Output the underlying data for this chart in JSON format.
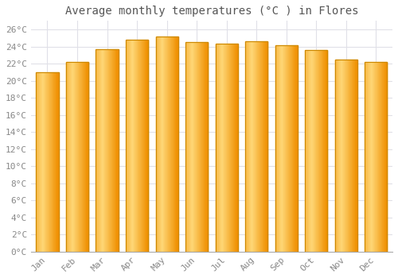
{
  "title": "Average monthly temperatures (°C ) in Flores",
  "months": [
    "Jan",
    "Feb",
    "Mar",
    "Apr",
    "May",
    "Jun",
    "Jul",
    "Aug",
    "Sep",
    "Oct",
    "Nov",
    "Dec"
  ],
  "values": [
    21.0,
    22.2,
    23.7,
    24.8,
    25.2,
    24.5,
    24.3,
    24.6,
    24.1,
    23.6,
    22.5,
    22.2
  ],
  "bar_color_center": "#FFD060",
  "bar_color_edge": "#F0A000",
  "bar_border_color": "#CC8800",
  "background_color": "#FFFFFF",
  "grid_color": "#E0E0E8",
  "text_color": "#888888",
  "title_color": "#555555",
  "ylim": [
    0,
    27
  ],
  "ytick_step": 2,
  "title_fontsize": 10,
  "tick_fontsize": 8
}
